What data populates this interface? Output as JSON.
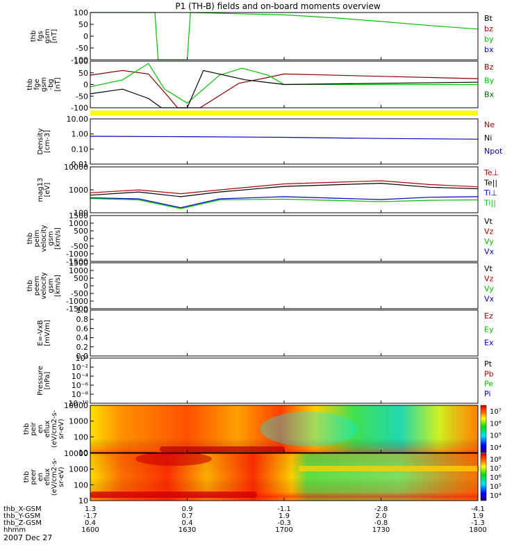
{
  "title": "P1 (TH-B) fields and on-board moments overview",
  "date_label": "2007 Dec 27",
  "panels": [
    {
      "ylabel": [
        "thb",
        "fgs",
        "gsm",
        "[nT]"
      ],
      "ticks": [
        "100",
        "50",
        "0",
        "-50",
        "-100"
      ],
      "legend": [
        [
          "Bt",
          "#000000"
        ],
        [
          "bz",
          "#b00000"
        ],
        [
          "by",
          "#00c000"
        ],
        [
          "bx",
          "#0000c0"
        ]
      ]
    },
    {
      "ylabel": [
        "thb",
        "fge",
        "gsm",
        "-bg",
        "[nT]"
      ],
      "ticks": [
        "100",
        "50",
        "0",
        "-50",
        "-100"
      ],
      "legend": [
        [
          "Bz",
          "#8b0000"
        ],
        [
          "By",
          "#00c000"
        ],
        [
          "Bx",
          "#006400"
        ]
      ]
    },
    {
      "ylabel": [
        "Density",
        "[cm-3]"
      ],
      "ticks": [
        "10.00",
        "1.00",
        "0.10",
        "0.01"
      ],
      "legend": [
        [
          "Ne",
          "#b00000"
        ],
        [
          "Ni",
          "#000000"
        ],
        [
          "Npot",
          "#0000c0"
        ]
      ]
    },
    {
      "ylabel": [
        "mag13",
        "[eV]"
      ],
      "ticks": [
        "10000",
        "1000",
        "100"
      ],
      "legend": [
        [
          "Te⊥",
          "#b00000"
        ],
        [
          "Te||",
          "#000000"
        ],
        [
          "Ti⊥",
          "#0000c0"
        ],
        [
          "Ti||",
          "#00c000"
        ]
      ]
    },
    {
      "ylabel": [
        "thb",
        "peim",
        "velocity",
        "gsm",
        "[km/s]"
      ],
      "ticks": [
        "1500",
        "1000",
        "500",
        "0",
        "-500",
        "-1000",
        "-1500"
      ],
      "legend": [
        [
          "Vt",
          "#000000"
        ],
        [
          "Vz",
          "#b00000"
        ],
        [
          "Vy",
          "#00c000"
        ],
        [
          "Vx",
          "#0000c0"
        ]
      ]
    },
    {
      "ylabel": [
        "thb",
        "peem",
        "velocity",
        "gsm",
        "[km/s]"
      ],
      "ticks": [
        "1500",
        "1000",
        "500",
        "0",
        "-500",
        "-1000",
        "-1500"
      ],
      "legend": [
        [
          "Vt",
          "#000000"
        ],
        [
          "Vz",
          "#b00000"
        ],
        [
          "Vy",
          "#00c000"
        ],
        [
          "Vx",
          "#0000c0"
        ]
      ]
    },
    {
      "ylabel": [
        "E=-VxB",
        "[mV/m]"
      ],
      "ticks": [
        "1.0",
        "0.8",
        "0.6",
        "0.4",
        "0.2",
        "0.0"
      ],
      "legend": [
        [
          "Ez",
          "#b00000"
        ],
        [
          "Ey",
          "#00c000"
        ],
        [
          "Ex",
          "#0000c0"
        ]
      ]
    },
    {
      "ylabel": [
        "Pressure",
        "[nPa]"
      ],
      "ticks": [
        "10⁰",
        "10⁻²",
        "10⁻⁴",
        "10⁻⁶",
        "10⁻⁸",
        "10⁻¹⁰"
      ],
      "legend": [
        [
          "Pt",
          "#000000"
        ],
        [
          "Pb",
          "#b00000"
        ],
        [
          "Pe",
          "#00c000"
        ],
        [
          "Pi",
          "#0000c0"
        ]
      ]
    },
    {
      "ylabel": [
        "thb",
        "peir",
        "en",
        "eflux",
        "(eV/cm2-s-",
        "sr-eV)"
      ],
      "ticks": [
        "10000",
        "1000",
        "100",
        "10"
      ],
      "legend": [],
      "colorbar": [
        "10⁷",
        "10⁶",
        "10⁵",
        "10⁴"
      ]
    },
    {
      "ylabel": [
        "thb",
        "peer",
        "en",
        "eflux",
        "(eV/cm2-s-",
        "sr-eV)"
      ],
      "ticks": [
        "10000",
        "1000",
        "100",
        "10"
      ],
      "legend": [],
      "colorbar": [
        "10⁸",
        "10⁷",
        "10⁶",
        "10⁵",
        "10⁴"
      ]
    }
  ],
  "footer": {
    "row_labels": [
      "thb_X-GSM",
      "thb_Y-GSM",
      "thb_Z-GSM",
      "hhmm"
    ],
    "columns": [
      [
        "1.3",
        "-1.7",
        "0.4",
        "1600"
      ],
      [
        "0.9",
        "0.7",
        "0.4",
        "1630"
      ],
      [
        "-1.1",
        "1.9",
        "-0.3",
        "1700"
      ],
      [
        "-2.8",
        "2.0",
        "-0.8",
        "1730"
      ],
      [
        "-4.1",
        "1.9",
        "-1.3",
        "1800"
      ]
    ]
  },
  "chart_data": {
    "type": "line",
    "title": "P1 (TH-B) fields and on-board moments overview",
    "xlabel": "hhmm",
    "x_ticks": [
      "1600",
      "1630",
      "1700",
      "1730",
      "1800"
    ],
    "x_range": [
      "16:00",
      "18:00"
    ],
    "panels": [
      {
        "name": "thb fgs gsm [nT]",
        "ylim": [
          -100,
          100
        ],
        "series": [
          {
            "name": "by",
            "color": "#00c000",
            "x": [
              "16:00",
              "16:20",
              "16:21",
              "16:30",
              "16:31",
              "16:45",
              "17:00",
              "17:15",
              "17:30",
              "17:45",
              "18:00"
            ],
            "y": [
              100,
              100,
              -100,
              -100,
              100,
              95,
              90,
              78,
              62,
              45,
              30
            ]
          }
        ]
      },
      {
        "name": "thb fge gsm -bg [nT]",
        "ylim": [
          -100,
          100
        ],
        "series": [
          {
            "name": "Bz",
            "color": "#8b0000",
            "x": [
              "16:00",
              "16:10",
              "16:18",
              "16:24",
              "16:27",
              "16:34",
              "16:46",
              "16:55",
              "17:00",
              "17:30",
              "18:00"
            ],
            "y": [
              40,
              60,
              45,
              -50,
              -110,
              -100,
              5,
              30,
              45,
              35,
              25
            ]
          },
          {
            "name": "By",
            "color": "#00c000",
            "x": [
              "16:00",
              "16:10",
              "16:18",
              "16:23",
              "16:30",
              "16:40",
              "16:47",
              "16:55",
              "17:00",
              "17:10",
              "17:30",
              "18:00"
            ],
            "y": [
              -10,
              20,
              90,
              -20,
              -80,
              40,
              70,
              40,
              0,
              0,
              0,
              0
            ]
          },
          {
            "name": "Bx",
            "color": "#000000",
            "x": [
              "16:00",
              "16:10",
              "16:18",
              "16:22",
              "16:30",
              "16:35",
              "16:48",
              "17:00",
              "17:30",
              "18:00"
            ],
            "y": [
              -40,
              -20,
              -60,
              -120,
              -100,
              60,
              20,
              0,
              5,
              10
            ]
          }
        ]
      },
      {
        "name": "Density [cm-3]",
        "ylim": [
          0.01,
          10
        ],
        "scale": "log",
        "series": [
          {
            "name": "Npot",
            "color": "#0000c0",
            "x": [
              "16:00",
              "16:30",
              "17:00",
              "17:30",
              "18:00"
            ],
            "y": [
              0.7,
              0.66,
              0.6,
              0.5,
              0.45
            ]
          }
        ]
      },
      {
        "name": "mag13 [eV]",
        "ylim": [
          50,
          10000
        ],
        "scale": "log",
        "series": [
          {
            "name": "Te⊥",
            "color": "#b00000",
            "x": [
              "16:00",
              "16:15",
              "16:28",
              "16:40",
              "17:00",
              "17:30",
              "17:45",
              "18:00"
            ],
            "y": [
              500,
              700,
              450,
              700,
              1400,
              2000,
              1300,
              1000
            ]
          },
          {
            "name": "Te||",
            "color": "#000000",
            "x": [
              "16:00",
              "16:15",
              "16:28",
              "16:40",
              "17:00",
              "17:30",
              "17:45",
              "18:00"
            ],
            "y": [
              380,
              550,
              320,
              550,
              1050,
              1500,
              950,
              800
            ]
          },
          {
            "name": "Ti⊥",
            "color": "#0000c0",
            "x": [
              "16:00",
              "16:15",
              "16:28",
              "16:40",
              "17:00",
              "17:30",
              "17:45",
              "18:00"
            ],
            "y": [
              280,
              250,
              90,
              250,
              320,
              230,
              300,
              320
            ]
          },
          {
            "name": "Ti||",
            "color": "#00c000",
            "x": [
              "16:00",
              "16:15",
              "16:28",
              "16:40",
              "17:00",
              "17:30",
              "17:45",
              "18:00"
            ],
            "y": [
              260,
              220,
              80,
              220,
              240,
              180,
              210,
              220
            ]
          }
        ]
      },
      {
        "name": "thb peim velocity gsm [km/s]",
        "ylim": [
          -1500,
          1500
        ],
        "series": []
      },
      {
        "name": "thb peem velocity gsm [km/s]",
        "ylim": [
          -1500,
          1500
        ],
        "series": []
      },
      {
        "name": "E=-VxB [mV/m]",
        "ylim": [
          0,
          1
        ],
        "series": []
      },
      {
        "name": "Pressure [nPa]",
        "ylim": [
          1e-10,
          1
        ],
        "scale": "log",
        "series": []
      },
      {
        "name": "thb peir en eflux (eV/cm2-s-sr-eV)",
        "type": "heatmap",
        "ylim": [
          5,
          20000
        ],
        "zlim": [
          10000.0,
          10000000.0
        ]
      },
      {
        "name": "thb peer en eflux (eV/cm2-s-sr-eV)",
        "type": "heatmap",
        "ylim": [
          5,
          20000
        ],
        "zlim": [
          10000.0,
          100000000.0
        ]
      }
    ]
  }
}
